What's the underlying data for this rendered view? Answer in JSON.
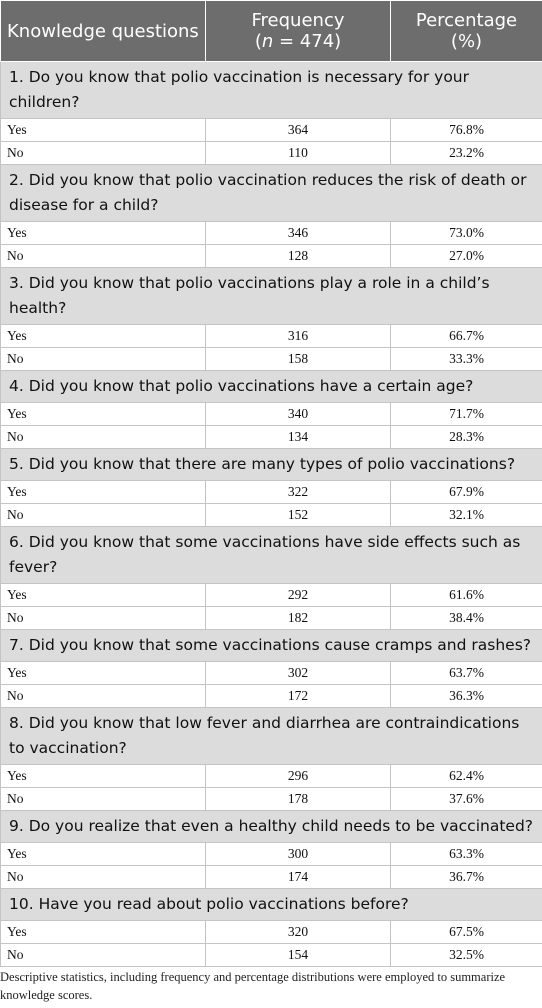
{
  "table": {
    "headers": {
      "col1": "Knowledge questions",
      "col2_line1": "Frequency",
      "col2_line2_n": "n",
      "col2_line2_rest": " = 474)",
      "col2_open": "(",
      "col3_line1": "Percentage",
      "col3_line2": "(%)"
    },
    "questions": [
      {
        "text": "1. Do you know that polio vaccination is necessary for your children?",
        "rows": [
          {
            "label": "Yes",
            "freq": "364",
            "pct": "76.8%"
          },
          {
            "label": "No",
            "freq": "110",
            "pct": "23.2%"
          }
        ]
      },
      {
        "text": "2. Did you know that polio vaccination reduces the risk of death or disease for a child?",
        "rows": [
          {
            "label": "Yes",
            "freq": "346",
            "pct": "73.0%"
          },
          {
            "label": "No",
            "freq": "128",
            "pct": "27.0%"
          }
        ]
      },
      {
        "text": "3. Did you know that polio vaccinations play a role in a child’s health?",
        "rows": [
          {
            "label": "Yes",
            "freq": "316",
            "pct": "66.7%"
          },
          {
            "label": "No",
            "freq": "158",
            "pct": "33.3%"
          }
        ]
      },
      {
        "text": "4. Did you know that polio vaccinations have a certain age?",
        "rows": [
          {
            "label": "Yes",
            "freq": "340",
            "pct": "71.7%"
          },
          {
            "label": "No",
            "freq": "134",
            "pct": "28.3%"
          }
        ]
      },
      {
        "text": "5. Did you know that there are many types of polio vaccinations?",
        "rows": [
          {
            "label": "Yes",
            "freq": "322",
            "pct": "67.9%"
          },
          {
            "label": "No",
            "freq": "152",
            "pct": "32.1%"
          }
        ]
      },
      {
        "text": "6. Did you know that some vaccinations have side effects such as fever?",
        "rows": [
          {
            "label": "Yes",
            "freq": "292",
            "pct": "61.6%"
          },
          {
            "label": "No",
            "freq": "182",
            "pct": "38.4%"
          }
        ]
      },
      {
        "text": "7. Did you know that some vaccinations cause cramps and rashes?",
        "rows": [
          {
            "label": "Yes",
            "freq": "302",
            "pct": "63.7%"
          },
          {
            "label": "No",
            "freq": "172",
            "pct": "36.3%"
          }
        ]
      },
      {
        "text": "8. Did you know that low fever and diarrhea are contraindications to vaccination?",
        "rows": [
          {
            "label": "Yes",
            "freq": "296",
            "pct": "62.4%"
          },
          {
            "label": "No",
            "freq": "178",
            "pct": "37.6%"
          }
        ]
      },
      {
        "text": "9. Do you realize that even a healthy child needs to be vaccinated?",
        "rows": [
          {
            "label": "Yes",
            "freq": "300",
            "pct": "63.3%"
          },
          {
            "label": "No",
            "freq": "174",
            "pct": "36.7%"
          }
        ]
      },
      {
        "text": "10. Have you read about polio vaccinations before?",
        "rows": [
          {
            "label": "Yes",
            "freq": "320",
            "pct": "67.5%"
          },
          {
            "label": "No",
            "freq": "154",
            "pct": "32.5%"
          }
        ]
      }
    ]
  },
  "footnote": "Descriptive statistics, including frequency and percentage distributions were employed to summarize knowledge scores."
}
